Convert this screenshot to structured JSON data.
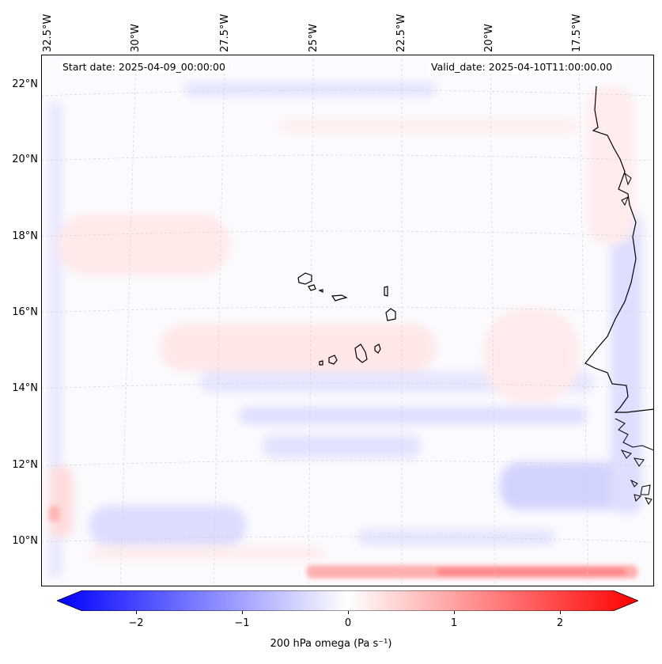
{
  "map": {
    "start_date": "Start date: 2025-04-09_00:00:00",
    "valid_date": "Valid_date: 2025-04-10T11:00:00.00",
    "lon_labels": [
      "32.5°W",
      "30°W",
      "27.5°W",
      "25°W",
      "22.5°W",
      "20°W",
      "17.5°W"
    ],
    "lat_labels": [
      "22°N",
      "20°N",
      "18°N",
      "16°N",
      "14°N",
      "12°N",
      "10°N"
    ],
    "islands": [
      "Santo Antão",
      "São Vicente",
      "Santa Luzia",
      "São Nicolau",
      "Sal",
      "Boa Vista",
      "Maio",
      "Santiago",
      "Fogo",
      "Brava"
    ]
  },
  "colorbar": {
    "label": "200 hPa omega (Pa s⁻¹)",
    "ticks": [
      "−2",
      "−1",
      "0",
      "1",
      "2"
    ],
    "tick_values": [
      -2,
      -1,
      0,
      1,
      2
    ],
    "range": [
      -2.75,
      2.75
    ],
    "colors": {
      "negative": "#0000ff",
      "zero": "#ffffff",
      "positive": "#ff0000"
    }
  }
}
